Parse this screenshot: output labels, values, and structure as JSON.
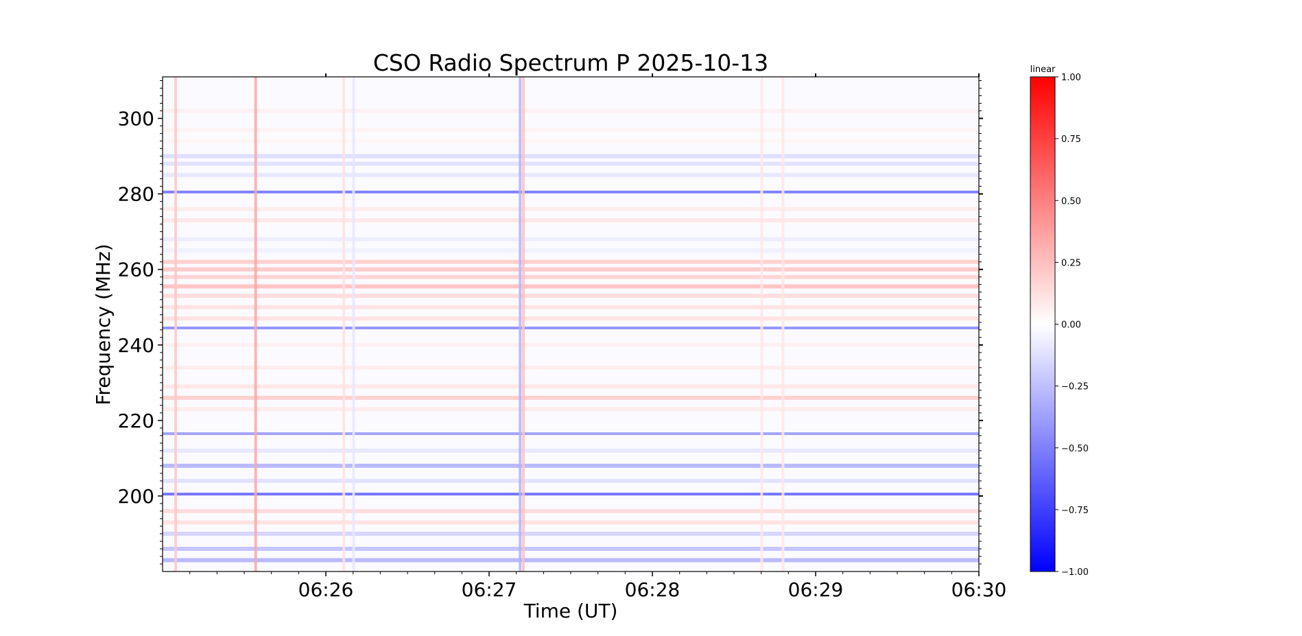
{
  "chart_data": {
    "type": "heatmap",
    "title": "CSO Radio Spectrum P 2025-10-13",
    "xlabel": "Time (UT)",
    "ylabel": "Frequency (MHz)",
    "x_range_minutes": [
      "06:25:00",
      "06:30:00"
    ],
    "x_ticks": [
      {
        "t": 26,
        "label": "06:26"
      },
      {
        "t": 27,
        "label": "06:27"
      },
      {
        "t": 28,
        "label": "06:28"
      },
      {
        "t": 29,
        "label": "06:29"
      },
      {
        "t": 30,
        "label": "06:30"
      }
    ],
    "ylim": [
      180,
      311
    ],
    "y_ticks": [
      {
        "v": 200,
        "label": "200"
      },
      {
        "v": 220,
        "label": "220"
      },
      {
        "v": 240,
        "label": "240"
      },
      {
        "v": 260,
        "label": "260"
      },
      {
        "v": 280,
        "label": "280"
      },
      {
        "v": 300,
        "label": "300"
      }
    ],
    "colorbar": {
      "label": "linear",
      "colormap": "bwr",
      "range": [
        -1.0,
        1.0
      ],
      "ticks": [
        {
          "v": 1.0,
          "label": "1.00"
        },
        {
          "v": 0.75,
          "label": "0.75"
        },
        {
          "v": 0.5,
          "label": "0.50"
        },
        {
          "v": 0.25,
          "label": "0.25"
        },
        {
          "v": 0.0,
          "label": "0.00"
        },
        {
          "v": -0.25,
          "label": "−0.25"
        },
        {
          "v": -0.5,
          "label": "−0.50"
        },
        {
          "v": -0.75,
          "label": "−0.75"
        },
        {
          "v": -1.0,
          "label": "−1.00"
        }
      ]
    },
    "colors": {
      "low": "#0000ff",
      "mid": "#ffffff",
      "high": "#ff0000"
    },
    "horizontal_features": [
      {
        "freq": 302,
        "value": 0.06
      },
      {
        "freq": 297,
        "value": 0.05
      },
      {
        "freq": 294,
        "value": 0.04
      },
      {
        "freq": 290,
        "value": -0.14
      },
      {
        "freq": 288,
        "value": -0.12
      },
      {
        "freq": 285,
        "value": -0.1
      },
      {
        "freq": 280.5,
        "value": -0.55
      },
      {
        "freq": 276,
        "value": 0.08
      },
      {
        "freq": 273,
        "value": 0.1
      },
      {
        "freq": 268,
        "value": -0.08
      },
      {
        "freq": 265,
        "value": -0.06
      },
      {
        "freq": 262,
        "value": 0.2
      },
      {
        "freq": 260,
        "value": 0.22
      },
      {
        "freq": 258,
        "value": 0.18
      },
      {
        "freq": 255.5,
        "value": 0.25
      },
      {
        "freq": 253,
        "value": 0.15
      },
      {
        "freq": 250,
        "value": 0.12
      },
      {
        "freq": 247,
        "value": 0.12
      },
      {
        "freq": 244.5,
        "value": -0.45
      },
      {
        "freq": 240,
        "value": 0.06
      },
      {
        "freq": 234,
        "value": 0.08
      },
      {
        "freq": 229,
        "value": 0.1
      },
      {
        "freq": 226,
        "value": 0.2
      },
      {
        "freq": 223,
        "value": 0.08
      },
      {
        "freq": 216.5,
        "value": -0.4
      },
      {
        "freq": 212,
        "value": -0.1
      },
      {
        "freq": 208,
        "value": -0.3
      },
      {
        "freq": 204,
        "value": -0.12
      },
      {
        "freq": 200.5,
        "value": -0.6
      },
      {
        "freq": 196,
        "value": 0.15
      },
      {
        "freq": 193,
        "value": 0.12
      },
      {
        "freq": 190,
        "value": -0.18
      },
      {
        "freq": 186,
        "value": -0.25
      },
      {
        "freq": 183,
        "value": -0.3
      }
    ],
    "vertical_features": [
      {
        "t": 25.08,
        "value": 0.22
      },
      {
        "t": 25.57,
        "value": 0.35
      },
      {
        "t": 26.11,
        "value": 0.12
      },
      {
        "t": 26.17,
        "value": -0.1
      },
      {
        "t": 27.19,
        "value": -0.3
      },
      {
        "t": 27.21,
        "value": 0.25
      },
      {
        "t": 28.67,
        "value": 0.1
      },
      {
        "t": 28.8,
        "value": 0.1
      }
    ]
  }
}
